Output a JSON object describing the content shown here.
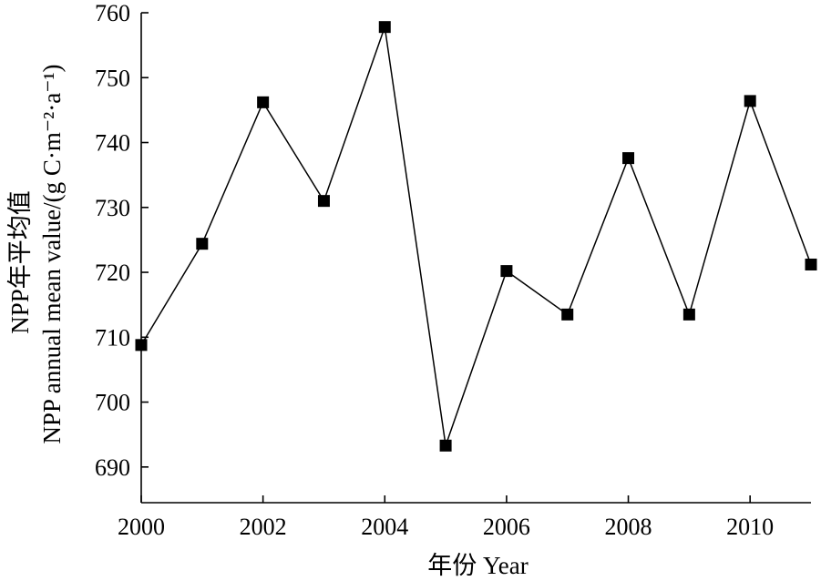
{
  "chart_data": {
    "type": "line",
    "title": "",
    "xlabel": "年份 Year",
    "ylabel_line1": "NPP年平均值",
    "ylabel_line2": "NPP annual mean value/(g C·m⁻²·a⁻¹)",
    "x": [
      2000,
      2001,
      2002,
      2003,
      2004,
      2005,
      2006,
      2007,
      2008,
      2009,
      2010,
      2011
    ],
    "series": [
      {
        "values": [
          708.8,
          724.4,
          746.2,
          731.0,
          757.8,
          693.3,
          720.2,
          713.5,
          737.6,
          713.5,
          746.4,
          721.2
        ]
      }
    ],
    "xlim": [
      2000,
      2011
    ],
    "ylim": [
      684.5,
      760
    ],
    "xticks": [
      2000,
      2002,
      2004,
      2006,
      2008,
      2010
    ],
    "yticks": [
      690,
      700,
      710,
      720,
      730,
      740,
      750,
      760
    ],
    "xtick_labels": [
      "2000",
      "2002",
      "2004",
      "2006",
      "2008",
      "2010"
    ],
    "ytick_labels": [
      "690",
      "700",
      "710",
      "720",
      "730",
      "740",
      "750",
      "760"
    ],
    "grid": false,
    "marker": "square",
    "line_color": "#000000",
    "marker_color": "#000000"
  }
}
